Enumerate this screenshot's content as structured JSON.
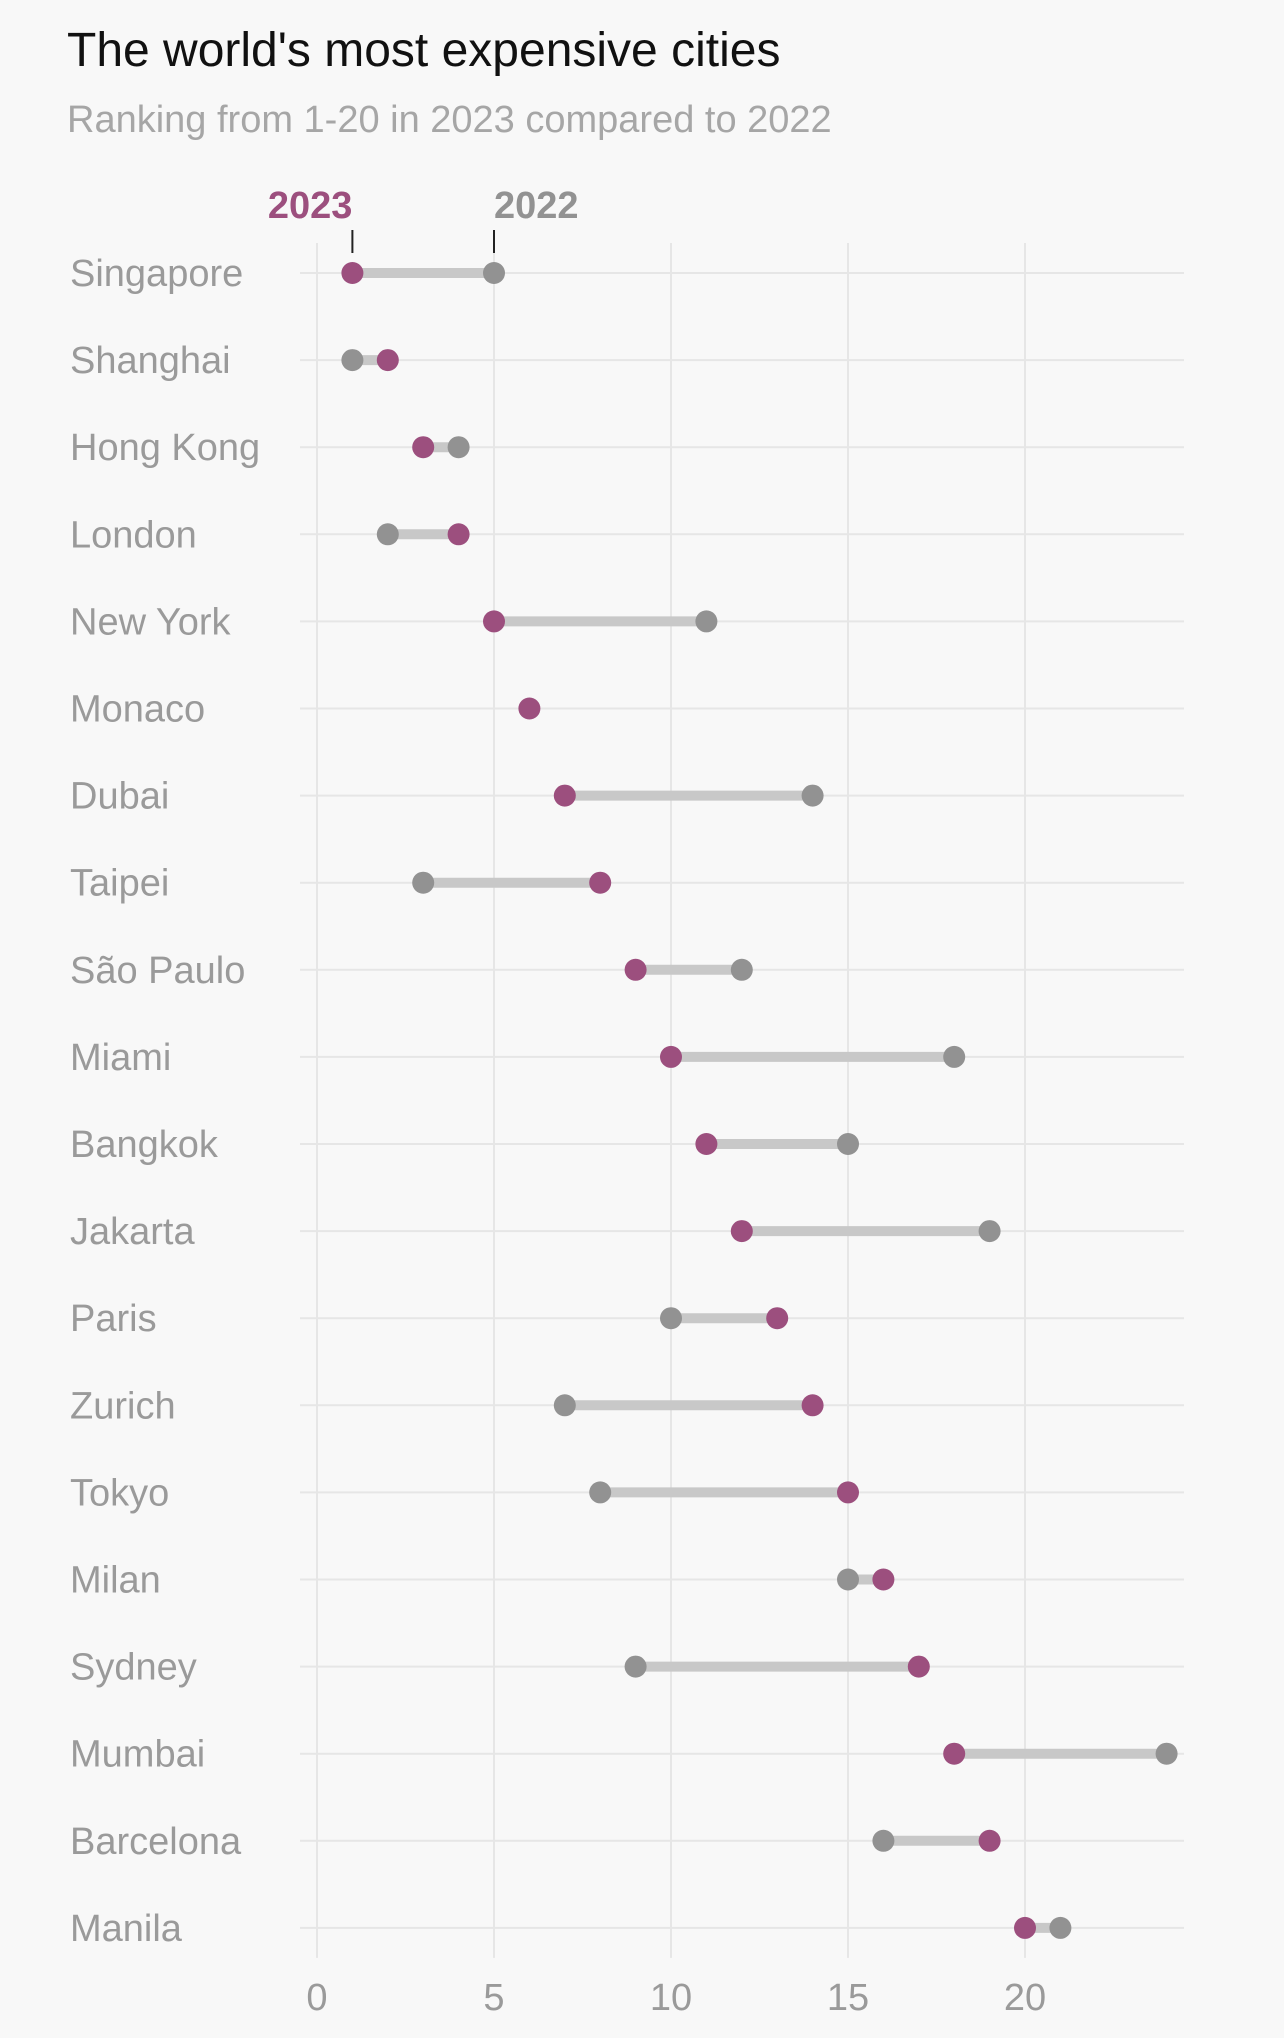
{
  "chart_data": {
    "type": "dumbbell",
    "title": "The world's most expensive cities",
    "subtitle": "Ranking from 1-20 in 2023 compared to 2022",
    "series": [
      {
        "name": "2023",
        "color": "#9c4f7e"
      },
      {
        "name": "2022",
        "color": "#929292"
      }
    ],
    "xlim": [
      0,
      24
    ],
    "x_ticks": [
      "0",
      "5",
      "10",
      "15",
      "20"
    ],
    "x_tick_values": [
      0,
      5,
      10,
      15,
      20
    ],
    "grid": true,
    "legend_placement": "top, above first row",
    "connector_color": "#c8c8c8",
    "categories": [
      "Singapore",
      "Shanghai",
      "Hong Kong",
      "London",
      "New York",
      "Monaco",
      "Dubai",
      "Taipei",
      "São Paulo",
      "Miami",
      "Bangkok",
      "Jakarta",
      "Paris",
      "Zurich",
      "Tokyo",
      "Milan",
      "Sydney",
      "Mumbai",
      "Barcelona",
      "Manila"
    ],
    "rank_2023": [
      1,
      2,
      3,
      4,
      5,
      6,
      7,
      8,
      9,
      10,
      11,
      12,
      13,
      14,
      15,
      16,
      17,
      18,
      19,
      20
    ],
    "rank_2022": [
      5,
      1,
      4,
      2,
      11,
      null,
      14,
      3,
      12,
      18,
      15,
      19,
      10,
      7,
      8,
      15,
      9,
      24,
      16,
      21
    ]
  }
}
